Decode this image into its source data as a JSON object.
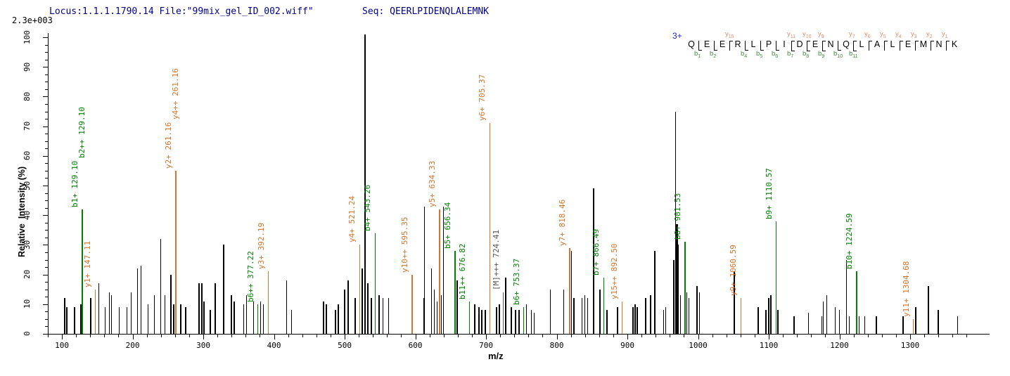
{
  "header": {
    "locus_file": "Locus:1.1.1.1790.14 File:\"99mix_gel_ID_002.wiff\"",
    "seq_label": "Seq: QEERLPIDENQLALEMNK",
    "max_intensity": "2.3e+003"
  },
  "axes": {
    "y_title": "Relative  Intensity (%)",
    "x_title": "m/z",
    "y_ticks": [
      0,
      10,
      20,
      30,
      40,
      50,
      60,
      70,
      80,
      90,
      100
    ],
    "x_ticks": [
      100,
      200,
      300,
      400,
      500,
      600,
      700,
      800,
      900,
      1000,
      1100,
      1200,
      1300
    ]
  },
  "sequence_map": {
    "charge": "3+",
    "residues": [
      "Q",
      "E",
      "E",
      "R",
      "L",
      "P",
      "I",
      "D",
      "E",
      "N",
      "Q",
      "L",
      "A",
      "L",
      "E",
      "M",
      "N",
      "K"
    ],
    "boundaries": [
      {
        "after": 1,
        "b": "b1"
      },
      {
        "after": 2,
        "b": "b2"
      },
      {
        "after": 3,
        "y": "y15"
      },
      {
        "after": 4,
        "b": "b4"
      },
      {
        "after": 5,
        "b": "b5"
      },
      {
        "after": 6,
        "b": "b6"
      },
      {
        "after": 7,
        "b": "b7",
        "y": "y11"
      },
      {
        "after": 8,
        "b": "b8",
        "y": "y10"
      },
      {
        "after": 9,
        "b": "b9",
        "y": "y9"
      },
      {
        "after": 10,
        "b": "b10"
      },
      {
        "after": 11,
        "b": "b11",
        "y": "y7"
      },
      {
        "after": 12,
        "y": "y6"
      },
      {
        "after": 13,
        "y": "y5"
      },
      {
        "after": 14,
        "y": "y4"
      },
      {
        "after": 15,
        "y": "y3"
      },
      {
        "after": 16,
        "y": "y2"
      },
      {
        "after": 17,
        "y": "y1"
      }
    ]
  },
  "colors": {
    "header_text": "#00008B",
    "charge": "#2323CC",
    "b_ion": "#008000",
    "y_ion": "#D4752C",
    "precursor": "#555555",
    "peak_default": "#000000",
    "seq_y": "#DB9070",
    "seq_b": "#3E8E3E"
  },
  "chart_data": {
    "type": "bar",
    "title": "MS/MS spectrum Locus:1.1.1.1790.14 QEERLPIDENQLALEMNK 3+",
    "xlabel": "m/z",
    "ylabel": "Relative Intensity (%)",
    "xlim": [
      80,
      1412
    ],
    "ylim": [
      0,
      100
    ],
    "grid": false,
    "max_absolute_intensity": "2.3e+003",
    "peaks": [
      {
        "mz": 104,
        "i": 12,
        "w": 2
      },
      {
        "mz": 107,
        "i": 9
      },
      {
        "mz": 118,
        "i": 9
      },
      {
        "mz": 127,
        "i": 10
      },
      {
        "mz": 129.1,
        "i": 42,
        "ion": "b",
        "labels": [
          "b1+ 129.10",
          "b2++ 129.10"
        ]
      },
      {
        "mz": 141,
        "i": 12
      },
      {
        "mz": 147.11,
        "i": 15,
        "ion": "y",
        "labels": [
          "y1+ 147.11"
        ]
      },
      {
        "mz": 152,
        "i": 17
      },
      {
        "mz": 161,
        "i": 9
      },
      {
        "mz": 167,
        "i": 14
      },
      {
        "mz": 170,
        "i": 13
      },
      {
        "mz": 181,
        "i": 9
      },
      {
        "mz": 192,
        "i": 9
      },
      {
        "mz": 198,
        "i": 14
      },
      {
        "mz": 207,
        "i": 22
      },
      {
        "mz": 212,
        "i": 23
      },
      {
        "mz": 222,
        "i": 10
      },
      {
        "mz": 231,
        "i": 13
      },
      {
        "mz": 240,
        "i": 32
      },
      {
        "mz": 246,
        "i": 13
      },
      {
        "mz": 254,
        "i": 20
      },
      {
        "mz": 258,
        "i": 10
      },
      {
        "mz": 261.16,
        "i": 55,
        "ion": "y",
        "labels": [
          "y2+ 261.16",
          "y4++ 261.16"
        ]
      },
      {
        "mz": 268,
        "i": 10
      },
      {
        "mz": 275,
        "i": 9
      },
      {
        "mz": 294,
        "i": 17
      },
      {
        "mz": 298,
        "i": 17
      },
      {
        "mz": 301,
        "i": 11
      },
      {
        "mz": 310,
        "i": 8
      },
      {
        "mz": 317,
        "i": 17
      },
      {
        "mz": 329,
        "i": 30
      },
      {
        "mz": 340,
        "i": 13
      },
      {
        "mz": 344,
        "i": 11
      },
      {
        "mz": 357,
        "i": 10
      },
      {
        "mz": 361,
        "i": 13
      },
      {
        "mz": 371,
        "i": 11
      },
      {
        "mz": 377.22,
        "i": 10,
        "ion": "b",
        "labels": [
          "b6++ 377.22"
        ]
      },
      {
        "mz": 381,
        "i": 11
      },
      {
        "mz": 385,
        "i": 10
      },
      {
        "mz": 392.19,
        "i": 21,
        "ion": "y",
        "labels": [
          "y3+ 392.19"
        ]
      },
      {
        "mz": 418,
        "i": 18
      },
      {
        "mz": 425,
        "i": 8
      },
      {
        "mz": 470,
        "i": 11
      },
      {
        "mz": 474,
        "i": 10
      },
      {
        "mz": 487,
        "i": 8,
        "w": 2
      },
      {
        "mz": 491,
        "i": 10
      },
      {
        "mz": 500,
        "i": 15
      },
      {
        "mz": 505,
        "i": 18
      },
      {
        "mz": 515,
        "i": 12
      },
      {
        "mz": 521.24,
        "i": 30,
        "ion": "y",
        "labels": [
          "y4+ 521.24"
        ]
      },
      {
        "mz": 525,
        "i": 22
      },
      {
        "mz": 529,
        "i": 101
      },
      {
        "mz": 533,
        "i": 17
      },
      {
        "mz": 538,
        "i": 12
      },
      {
        "mz": 543.26,
        "i": 34,
        "ion": "b",
        "labels": [
          "b4+ 543.26"
        ]
      },
      {
        "mz": 549,
        "i": 13
      },
      {
        "mz": 554,
        "i": 12
      },
      {
        "mz": 562,
        "i": 12
      },
      {
        "mz": 595.35,
        "i": 20,
        "ion": "y",
        "labels": [
          "y10++ 595.35"
        ]
      },
      {
        "mz": 612,
        "i": 12,
        "w": 2
      },
      {
        "mz": 613,
        "i": 43
      },
      {
        "mz": 623,
        "i": 22
      },
      {
        "mz": 627,
        "i": 15
      },
      {
        "mz": 631,
        "i": 11
      },
      {
        "mz": 634.33,
        "i": 42,
        "ion": "y",
        "labels": [
          "y5+ 634.33"
        ]
      },
      {
        "mz": 637,
        "i": 13
      },
      {
        "mz": 640,
        "i": 43
      },
      {
        "mz": 656.34,
        "i": 28,
        "ion": "b",
        "labels": [
          "b5+ 656.34"
        ]
      },
      {
        "mz": 659,
        "i": 18
      },
      {
        "mz": 676.82,
        "i": 11,
        "ion": "b",
        "labels": [
          "b11++ 676.82"
        ]
      },
      {
        "mz": 684,
        "i": 10
      },
      {
        "mz": 690,
        "i": 9
      },
      {
        "mz": 694,
        "i": 8
      },
      {
        "mz": 699,
        "i": 8
      },
      {
        "mz": 705.37,
        "i": 71,
        "ion": "y",
        "labels": [
          "y6+ 705.37"
        ]
      },
      {
        "mz": 715,
        "i": 9
      },
      {
        "mz": 719,
        "i": 10
      },
      {
        "mz": 724.41,
        "i": 14,
        "ion": "M",
        "labels": [
          "[M]+++ 724.41"
        ]
      },
      {
        "mz": 728,
        "i": 19
      },
      {
        "mz": 736,
        "i": 9
      },
      {
        "mz": 742,
        "i": 8
      },
      {
        "mz": 747,
        "i": 8
      },
      {
        "mz": 753.37,
        "i": 9,
        "ion": "b",
        "labels": [
          "b6+ 753.37"
        ]
      },
      {
        "mz": 757,
        "i": 10
      },
      {
        "mz": 764,
        "i": 8
      },
      {
        "mz": 768,
        "i": 7
      },
      {
        "mz": 791,
        "i": 15
      },
      {
        "mz": 810,
        "i": 15
      },
      {
        "mz": 818.46,
        "i": 29,
        "ion": "y",
        "labels": [
          "y7+ 818.46"
        ]
      },
      {
        "mz": 821,
        "i": 28
      },
      {
        "mz": 824,
        "i": 12,
        "w": 2
      },
      {
        "mz": 836,
        "i": 12
      },
      {
        "mz": 840,
        "i": 13
      },
      {
        "mz": 844,
        "i": 12
      },
      {
        "mz": 852,
        "i": 49
      },
      {
        "mz": 861,
        "i": 15
      },
      {
        "mz": 866.49,
        "i": 19,
        "ion": "b",
        "labels": [
          "b7+ 866.49"
        ]
      },
      {
        "mz": 871,
        "i": 8
      },
      {
        "mz": 886,
        "i": 9
      },
      {
        "mz": 892.5,
        "i": 11,
        "ion": "y",
        "labels": [
          "y15++ 892.50"
        ]
      },
      {
        "mz": 908,
        "i": 9
      },
      {
        "mz": 911,
        "i": 10
      },
      {
        "mz": 914,
        "i": 9
      },
      {
        "mz": 926,
        "i": 12
      },
      {
        "mz": 933,
        "i": 13
      },
      {
        "mz": 939,
        "i": 28
      },
      {
        "mz": 951,
        "i": 8
      },
      {
        "mz": 954,
        "i": 9
      },
      {
        "mz": 966,
        "i": 25,
        "w": 2
      },
      {
        "mz": 968,
        "i": 75
      },
      {
        "mz": 970,
        "i": 37,
        "w": 3
      },
      {
        "mz": 972,
        "i": 30,
        "w": 2
      },
      {
        "mz": 975,
        "i": 13
      },
      {
        "mz": 981.53,
        "i": 31,
        "ion": "b",
        "labels": [
          "b8+ 981.53"
        ]
      },
      {
        "mz": 984,
        "i": 14
      },
      {
        "mz": 987,
        "i": 12
      },
      {
        "mz": 999,
        "i": 16,
        "w": 2
      },
      {
        "mz": 1002,
        "i": 14
      },
      {
        "mz": 1051,
        "i": 21
      },
      {
        "mz": 1060.59,
        "i": 12,
        "ion": "y",
        "labels": [
          "y9+ 1060.59"
        ]
      },
      {
        "mz": 1085,
        "i": 9
      },
      {
        "mz": 1096,
        "i": 8,
        "w": 2
      },
      {
        "mz": 1100,
        "i": 12
      },
      {
        "mz": 1103,
        "i": 13
      },
      {
        "mz": 1110.57,
        "i": 38,
        "ion": "b",
        "labels": [
          "b9+ 1110.57"
        ]
      },
      {
        "mz": 1113,
        "i": 8
      },
      {
        "mz": 1136,
        "i": 6
      },
      {
        "mz": 1156,
        "i": 7
      },
      {
        "mz": 1175,
        "i": 6
      },
      {
        "mz": 1177,
        "i": 11
      },
      {
        "mz": 1182,
        "i": 13
      },
      {
        "mz": 1194,
        "i": 9
      },
      {
        "mz": 1200,
        "i": 8
      },
      {
        "mz": 1210,
        "i": 25
      },
      {
        "mz": 1214,
        "i": 6
      },
      {
        "mz": 1224.59,
        "i": 21,
        "ion": "b",
        "labels": [
          "b10+ 1224.59"
        ]
      },
      {
        "mz": 1228,
        "i": 6
      },
      {
        "mz": 1236,
        "i": 6
      },
      {
        "mz": 1252,
        "i": 6
      },
      {
        "mz": 1290,
        "i": 6
      },
      {
        "mz": 1304.68,
        "i": 5,
        "ion": "y",
        "labels": [
          "y11+ 1304.68"
        ]
      },
      {
        "mz": 1308,
        "i": 9
      },
      {
        "mz": 1326,
        "i": 16
      },
      {
        "mz": 1340,
        "i": 8
      },
      {
        "mz": 1367,
        "i": 6
      }
    ]
  }
}
